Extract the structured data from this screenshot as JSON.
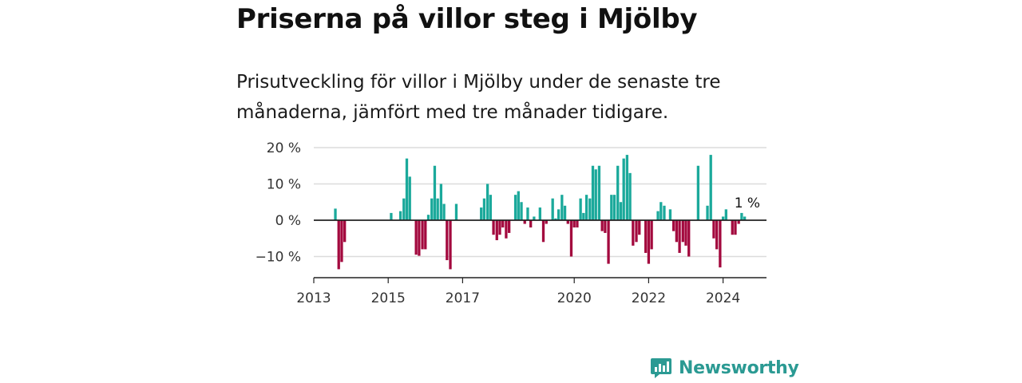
{
  "header": {
    "title": "Priserna på villor steg i Mjölby",
    "subtitle": "Prisutveckling för villor i Mjölby under de senaste tre månaderna, jämfört med tre månader tidigare."
  },
  "branding": {
    "name": "Newsworthy",
    "icon": "newsworthy-logo-icon"
  },
  "colors": {
    "positive": "#1ba99b",
    "negative": "#a3093e",
    "grid": "#dcdcdc",
    "axis": "#222222",
    "brand": "#2b9a93"
  },
  "chart_data": {
    "type": "bar",
    "x_unit": "year",
    "x_ticks": [
      "2013",
      "2015",
      "2017",
      "2020",
      "2022",
      "2024"
    ],
    "y_ticks": [
      "20 %",
      "10 %",
      "0 %",
      "−10 %"
    ],
    "y_tick_values": [
      20,
      10,
      0,
      -10
    ],
    "ylim": [
      -15.5,
      20
    ],
    "xlim": [
      2013.0,
      2025.3
    ],
    "grid": true,
    "annotation": {
      "text": "1 %",
      "x": 2024.65,
      "y": 0.7
    },
    "series": [
      {
        "values": [
          [
            2013.58,
            3.2
          ],
          [
            2013.67,
            -13.5
          ],
          [
            2013.75,
            -11.5
          ],
          [
            2013.83,
            -6.0
          ],
          [
            2015.08,
            2.0
          ],
          [
            2015.33,
            2.5
          ],
          [
            2015.42,
            6.0
          ],
          [
            2015.5,
            17.0
          ],
          [
            2015.58,
            12.0
          ],
          [
            2015.75,
            -9.5
          ],
          [
            2015.83,
            -9.8
          ],
          [
            2015.92,
            -8.0
          ],
          [
            2016.0,
            -8.0
          ],
          [
            2016.08,
            1.5
          ],
          [
            2016.17,
            6.0
          ],
          [
            2016.25,
            15.0
          ],
          [
            2016.33,
            6.0
          ],
          [
            2016.42,
            10.0
          ],
          [
            2016.5,
            4.5
          ],
          [
            2016.58,
            -11.0
          ],
          [
            2016.67,
            -13.5
          ],
          [
            2016.83,
            4.5
          ],
          [
            2017.5,
            3.5
          ],
          [
            2017.58,
            6.0
          ],
          [
            2017.67,
            10.0
          ],
          [
            2017.75,
            7.0
          ],
          [
            2017.83,
            -4.0
          ],
          [
            2017.92,
            -5.5
          ],
          [
            2018.0,
            -4.0
          ],
          [
            2018.08,
            -2.0
          ],
          [
            2018.17,
            -5.0
          ],
          [
            2018.25,
            -3.5
          ],
          [
            2018.42,
            7.0
          ],
          [
            2018.5,
            8.0
          ],
          [
            2018.58,
            5.0
          ],
          [
            2018.67,
            -1.0
          ],
          [
            2018.75,
            3.5
          ],
          [
            2018.83,
            -2.0
          ],
          [
            2018.92,
            1.0
          ],
          [
            2019.08,
            3.5
          ],
          [
            2019.17,
            -6.0
          ],
          [
            2019.25,
            -1.0
          ],
          [
            2019.42,
            6.0
          ],
          [
            2019.5,
            0.5
          ],
          [
            2019.58,
            3.0
          ],
          [
            2019.67,
            7.0
          ],
          [
            2019.75,
            4.0
          ],
          [
            2019.83,
            -1.0
          ],
          [
            2019.92,
            -10.0
          ],
          [
            2020.0,
            -2.0
          ],
          [
            2020.08,
            -2.0
          ],
          [
            2020.17,
            6.0
          ],
          [
            2020.25,
            2.0
          ],
          [
            2020.33,
            7.0
          ],
          [
            2020.42,
            6.0
          ],
          [
            2020.5,
            15.0
          ],
          [
            2020.58,
            14.0
          ],
          [
            2020.67,
            15.0
          ],
          [
            2020.75,
            -3.0
          ],
          [
            2020.83,
            -3.5
          ],
          [
            2020.92,
            -12.0
          ],
          [
            2021.0,
            7.0
          ],
          [
            2021.08,
            7.0
          ],
          [
            2021.17,
            15.0
          ],
          [
            2021.25,
            5.0
          ],
          [
            2021.33,
            17.0
          ],
          [
            2021.42,
            18.0
          ],
          [
            2021.5,
            13.0
          ],
          [
            2021.58,
            -7.0
          ],
          [
            2021.67,
            -6.0
          ],
          [
            2021.75,
            -4.0
          ],
          [
            2021.92,
            -9.0
          ],
          [
            2022.0,
            -12.0
          ],
          [
            2022.08,
            -8.0
          ],
          [
            2022.25,
            2.5
          ],
          [
            2022.33,
            5.0
          ],
          [
            2022.42,
            4.0
          ],
          [
            2022.58,
            3.0
          ],
          [
            2022.67,
            -3.0
          ],
          [
            2022.75,
            -6.0
          ],
          [
            2022.83,
            -9.0
          ],
          [
            2022.92,
            -6.0
          ],
          [
            2023.0,
            -7.0
          ],
          [
            2023.08,
            -10.0
          ],
          [
            2023.33,
            15.0
          ],
          [
            2023.58,
            4.0
          ],
          [
            2023.67,
            18.0
          ],
          [
            2023.75,
            -5.0
          ],
          [
            2023.83,
            -8.0
          ],
          [
            2023.92,
            -13.0
          ],
          [
            2024.0,
            1.0
          ],
          [
            2024.08,
            3.0
          ],
          [
            2024.25,
            -4.0
          ],
          [
            2024.33,
            -4.0
          ],
          [
            2024.42,
            -1.0
          ],
          [
            2024.5,
            2.0
          ],
          [
            2024.58,
            1.0
          ]
        ]
      }
    ]
  }
}
